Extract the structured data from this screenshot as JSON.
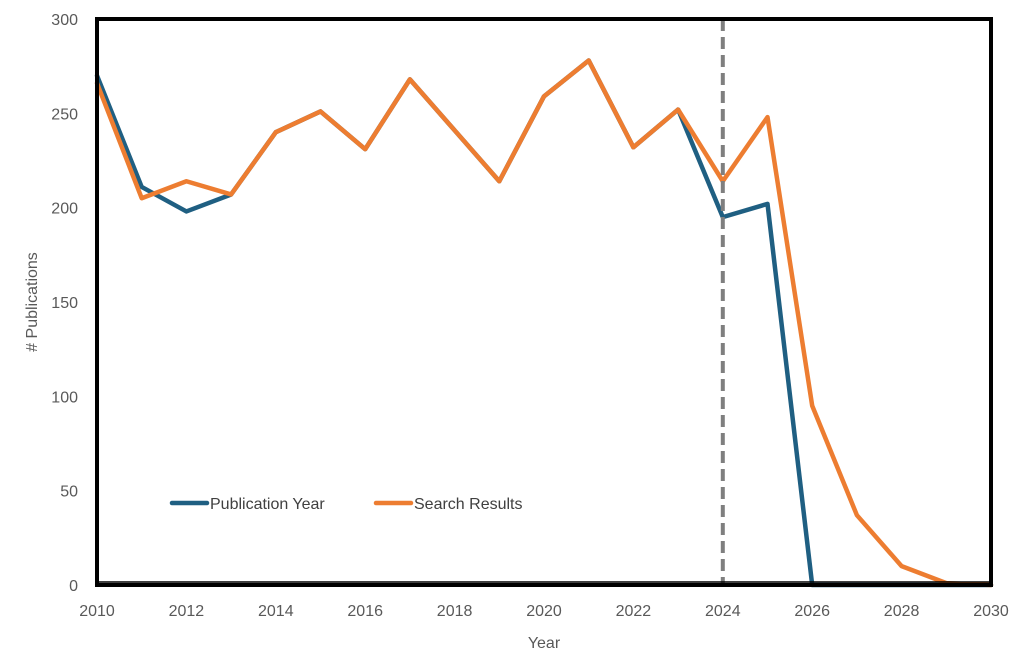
{
  "chart_data": {
    "type": "line",
    "xlabel": "Year",
    "ylabel": "# Publications",
    "xlim": [
      2010,
      2030
    ],
    "ylim": [
      0,
      300
    ],
    "x_ticks": [
      2010,
      2012,
      2014,
      2016,
      2018,
      2020,
      2022,
      2024,
      2026,
      2028,
      2030
    ],
    "y_ticks": [
      0,
      50,
      100,
      150,
      200,
      250,
      300
    ],
    "grid": false,
    "legend_position": "bottom-left",
    "reference_line": {
      "x": 2024,
      "style": "dashed",
      "color": "#7f7f7f"
    },
    "series": [
      {
        "name": "Publication Year",
        "color": "#1f5f82",
        "x": [
          2010,
          2011,
          2012,
          2013,
          2014,
          2015,
          2016,
          2017,
          2018,
          2019,
          2020,
          2021,
          2022,
          2023,
          2024,
          2025,
          2026,
          2027,
          2028,
          2029,
          2030
        ],
        "values": [
          270,
          211,
          198,
          207,
          240,
          251,
          231,
          268,
          241,
          214,
          259,
          278,
          232,
          252,
          195,
          202,
          0,
          0,
          0,
          0,
          0
        ]
      },
      {
        "name": "Search Results",
        "color": "#ed7d31",
        "x": [
          2010,
          2011,
          2012,
          2013,
          2014,
          2015,
          2016,
          2017,
          2018,
          2019,
          2020,
          2021,
          2022,
          2023,
          2024,
          2025,
          2026,
          2027,
          2028,
          2029,
          2030
        ],
        "values": [
          266,
          205,
          214,
          207,
          240,
          251,
          231,
          268,
          241,
          214,
          259,
          278,
          232,
          252,
          214,
          248,
          95,
          37,
          10,
          1,
          0
        ]
      }
    ]
  }
}
